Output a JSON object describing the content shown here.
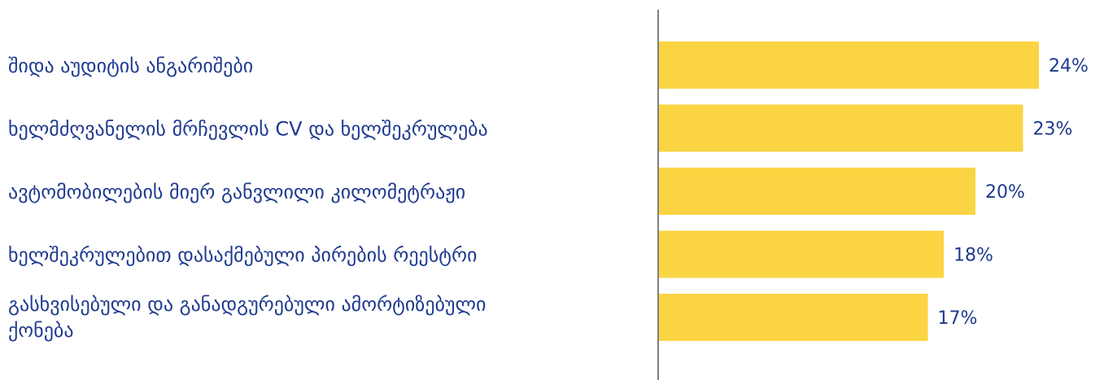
{
  "chart_data": {
    "type": "bar",
    "orientation": "horizontal",
    "categories": [
      "შიდა აუდიტის ანგარიშები",
      "ხელმძღვანელის მრჩევლის CV და ხელშეკრულება",
      "ავტომობილების მიერ განვლილი კილომეტრაჟი",
      "ხელშეკრულებით დასაქმებული პირების რეესტრი",
      "გასხვისებული და განადგურებული ამორტიზებული ქონება"
    ],
    "values": [
      24,
      23,
      20,
      18,
      17
    ],
    "value_labels": [
      "24%",
      "23%",
      "20%",
      "18%",
      "17%"
    ],
    "bar_color": "#fad443",
    "text_color": "#1f3a8f",
    "axis_color": "#7f7f7f",
    "xlim": [
      0,
      100
    ],
    "grid": false,
    "legend": "none"
  }
}
